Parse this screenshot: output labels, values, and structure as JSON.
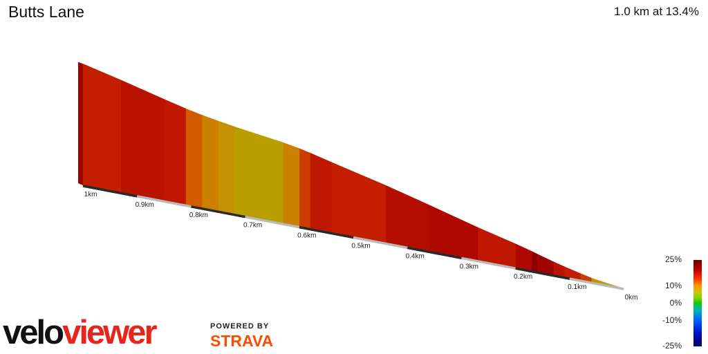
{
  "header": {
    "title": "Butts Lane",
    "summary": "1.0 km at 13.4%"
  },
  "chart_data": {
    "type": "area",
    "title": "Butts Lane",
    "xlabel": "",
    "ylabel": "",
    "x_unit": "km",
    "xlim": [
      0,
      1.0
    ],
    "tick_labels": [
      "1km",
      "0.9km",
      "0.8km",
      "0.7km",
      "0.6km",
      "0.5km",
      "0.4km",
      "0.3km",
      "0.2km",
      "0.1km",
      "0km"
    ],
    "segments": [
      {
        "from": 0.0,
        "to": 0.02,
        "gradient": 6
      },
      {
        "from": 0.02,
        "to": 0.04,
        "gradient": 8
      },
      {
        "from": 0.04,
        "to": 0.06,
        "gradient": 9
      },
      {
        "from": 0.06,
        "to": 0.08,
        "gradient": 13
      },
      {
        "from": 0.08,
        "to": 0.11,
        "gradient": 14
      },
      {
        "from": 0.11,
        "to": 0.13,
        "gradient": 15
      },
      {
        "from": 0.13,
        "to": 0.16,
        "gradient": 17
      },
      {
        "from": 0.16,
        "to": 0.17,
        "gradient": 18
      },
      {
        "from": 0.17,
        "to": 0.2,
        "gradient": 16
      },
      {
        "from": 0.2,
        "to": 0.27,
        "gradient": 14.5
      },
      {
        "from": 0.27,
        "to": 0.36,
        "gradient": 16
      },
      {
        "from": 0.36,
        "to": 0.44,
        "gradient": 15.5
      },
      {
        "from": 0.44,
        "to": 0.54,
        "gradient": 14
      },
      {
        "from": 0.54,
        "to": 0.58,
        "gradient": 14.5
      },
      {
        "from": 0.58,
        "to": 0.6,
        "gradient": 13
      },
      {
        "from": 0.6,
        "to": 0.63,
        "gradient": 10.5
      },
      {
        "from": 0.63,
        "to": 0.72,
        "gradient": 8
      },
      {
        "from": 0.72,
        "to": 0.75,
        "gradient": 9.5
      },
      {
        "from": 0.75,
        "to": 0.78,
        "gradient": 10.5
      },
      {
        "from": 0.78,
        "to": 0.81,
        "gradient": 12
      },
      {
        "from": 0.81,
        "to": 0.85,
        "gradient": 14.5
      },
      {
        "from": 0.85,
        "to": 0.93,
        "gradient": 15
      },
      {
        "from": 0.93,
        "to": 1.0,
        "gradient": 14
      }
    ]
  },
  "legend": {
    "labels": [
      {
        "text": "25%",
        "value": 25
      },
      {
        "text": "10%",
        "value": 10
      },
      {
        "text": "0%",
        "value": 0
      },
      {
        "text": "-10%",
        "value": -10
      },
      {
        "text": "-25%",
        "value": -25
      }
    ]
  },
  "brand": {
    "velo": "velo",
    "viewer": "viewer",
    "powered_by": "POWERED BY",
    "strava": "STRAVA"
  }
}
